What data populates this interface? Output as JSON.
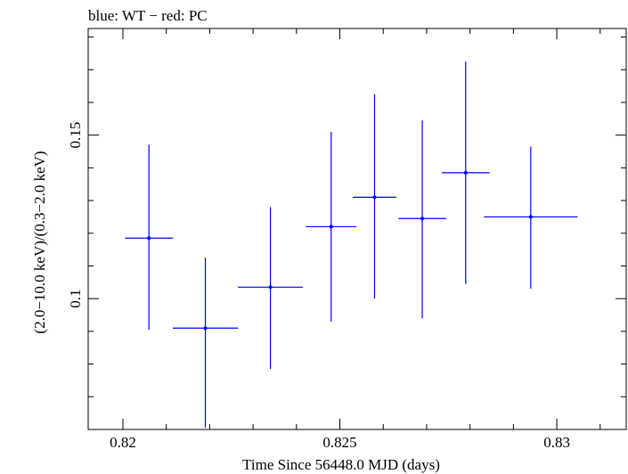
{
  "chart_data": {
    "type": "scatter",
    "title": "blue: WT − red: PC",
    "xlabel": "Time Since 56448.0 MJD (days)",
    "ylabel": "(2.0−10.0 keV)/(0.3−2.0 keV)",
    "xlim": [
      0.8192,
      0.8316
    ],
    "ylim": [
      0.06,
      0.1826
    ],
    "x_ticks": [
      {
        "value": 0.82,
        "label": "0.82"
      },
      {
        "value": 0.825,
        "label": "0.825"
      },
      {
        "value": 0.83,
        "label": "0.83"
      }
    ],
    "y_ticks": [
      {
        "value": 0.1,
        "label": "0.1"
      },
      {
        "value": 0.15,
        "label": "0.15"
      }
    ],
    "grid": false,
    "series": [
      {
        "name": "WT",
        "color": "#0000ff",
        "points": [
          {
            "x": 0.8206,
            "xerr": 0.00055,
            "y": 0.1185,
            "yerr_low": 0.028,
            "yerr_high": 0.0285
          },
          {
            "x": 0.8219,
            "xerr": 0.00075,
            "y": 0.091,
            "yerr_low": 0.0305,
            "yerr_high": 0.0215
          },
          {
            "x": 0.8234,
            "xerr": 0.00075,
            "y": 0.1035,
            "yerr_low": 0.025,
            "yerr_high": 0.0245
          },
          {
            "x": 0.8248,
            "xerr": 0.00058,
            "y": 0.122,
            "yerr_low": 0.029,
            "yerr_high": 0.029
          },
          {
            "x": 0.8258,
            "xerr": 0.0005,
            "y": 0.131,
            "yerr_low": 0.031,
            "yerr_high": 0.0315
          },
          {
            "x": 0.8269,
            "xerr": 0.00055,
            "y": 0.1245,
            "yerr_low": 0.0305,
            "yerr_high": 0.03
          },
          {
            "x": 0.8279,
            "xerr": 0.00055,
            "y": 0.1385,
            "yerr_low": 0.034,
            "yerr_high": 0.034
          },
          {
            "x": 0.8294,
            "xerr": 0.00108,
            "y": 0.125,
            "yerr_low": 0.022,
            "yerr_high": 0.0215
          }
        ]
      }
    ]
  }
}
